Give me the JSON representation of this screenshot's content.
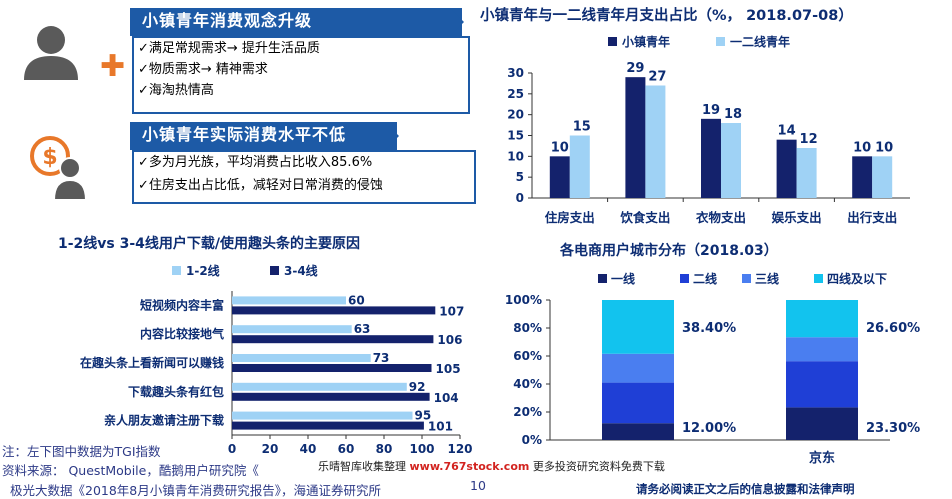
{
  "panel_top": {
    "title": "小镇青年消费观念升级",
    "lines": [
      "✓满足常规需求→ 提升生活品质",
      "✓物质需求→ 精神需求",
      "✓海淘热情高"
    ]
  },
  "panel_bottom": {
    "title": "小镇青年实际消费水平不低",
    "lines": [
      "✓多为月光族，平均消费占比收入85.6%",
      "✓住房支出占比低，减轻对日常消费的侵蚀"
    ]
  },
  "icons": [
    "person-icon",
    "plus-icon",
    "money-person-icon"
  ],
  "colors": {
    "dark_navy": "#14226c",
    "light_blue": "#9fd2f5",
    "blue": "#1f3fd6",
    "mid_blue": "#4a7ef0",
    "cyan": "#12c3ee",
    "brand_blue": "#1d5aa6"
  },
  "chart_data": [
    {
      "type": "bar",
      "orientation": "horizontal",
      "title": "1-2线vs 3-4线用户下载/使用趣头条的主要原因",
      "categories": [
        "短视频内容丰富",
        "内容比较接地气",
        "在趣头条上看新闻可以赚钱",
        "下载趣头条有红包",
        "亲人朋友邀请注册下载"
      ],
      "series": [
        {
          "name": "1-2线",
          "values": [
            60,
            63,
            73,
            92,
            95
          ]
        },
        {
          "name": "3-4线",
          "values": [
            107,
            106,
            105,
            104,
            101
          ]
        }
      ],
      "xlim": [
        0,
        120
      ],
      "xticks": [
        0,
        20,
        40,
        60,
        80,
        100,
        120
      ],
      "legend": "top"
    },
    {
      "type": "bar",
      "title": "小镇青年与一二线青年月支出占比（%， 2018.07-08）",
      "categories": [
        "住房支出",
        "饮食支出",
        "衣物支出",
        "娱乐支出",
        "出行支出"
      ],
      "series": [
        {
          "name": "小镇青年",
          "values": [
            10,
            29,
            19,
            14,
            10
          ]
        },
        {
          "name": "一二线青年",
          "values": [
            15,
            27,
            18,
            12,
            10
          ]
        }
      ],
      "ylim": [
        0,
        30
      ],
      "yticks": [
        0,
        5,
        10,
        15,
        20,
        25,
        30
      ],
      "legend": "top"
    },
    {
      "type": "bar",
      "stacked": true,
      "title": "各电商用户城市分布（2018.03）",
      "categories": [
        "",
        "京东"
      ],
      "series": [
        {
          "name": "一线",
          "values": [
            12.0,
            23.3
          ]
        },
        {
          "name": "二线",
          "values": [
            29.0,
            33.0
          ]
        },
        {
          "name": "三线",
          "values": [
            20.6,
            17.1
          ]
        },
        {
          "name": "四线及以下",
          "values": [
            38.4,
            26.6
          ]
        }
      ],
      "data_labels": {
        "top": [
          "38.40%",
          "26.60%"
        ],
        "bottom": [
          "12.00%",
          "23.30%"
        ]
      },
      "ylim": [
        0,
        100
      ],
      "ytick_labels": [
        "0%",
        "20%",
        "40%",
        "60%",
        "80%",
        "100%"
      ],
      "legend": "top"
    }
  ],
  "notes": {
    "line1": "注：左下图中数据为TGI指数",
    "line2": "资料来源： QuestMobile，酷鹅用户研究院《",
    "line3": "极光大数据《2018年8月小镇青年消费研究报告》，海通证券研究所",
    "page_number": "10"
  },
  "footer": "请务必阅读正文之后的信息披露和法律声明",
  "watermark": {
    "text1": "乐晴智库收集整理",
    "url": "www.767stock.com",
    "text2": "更多投资研究资料免费下载"
  }
}
